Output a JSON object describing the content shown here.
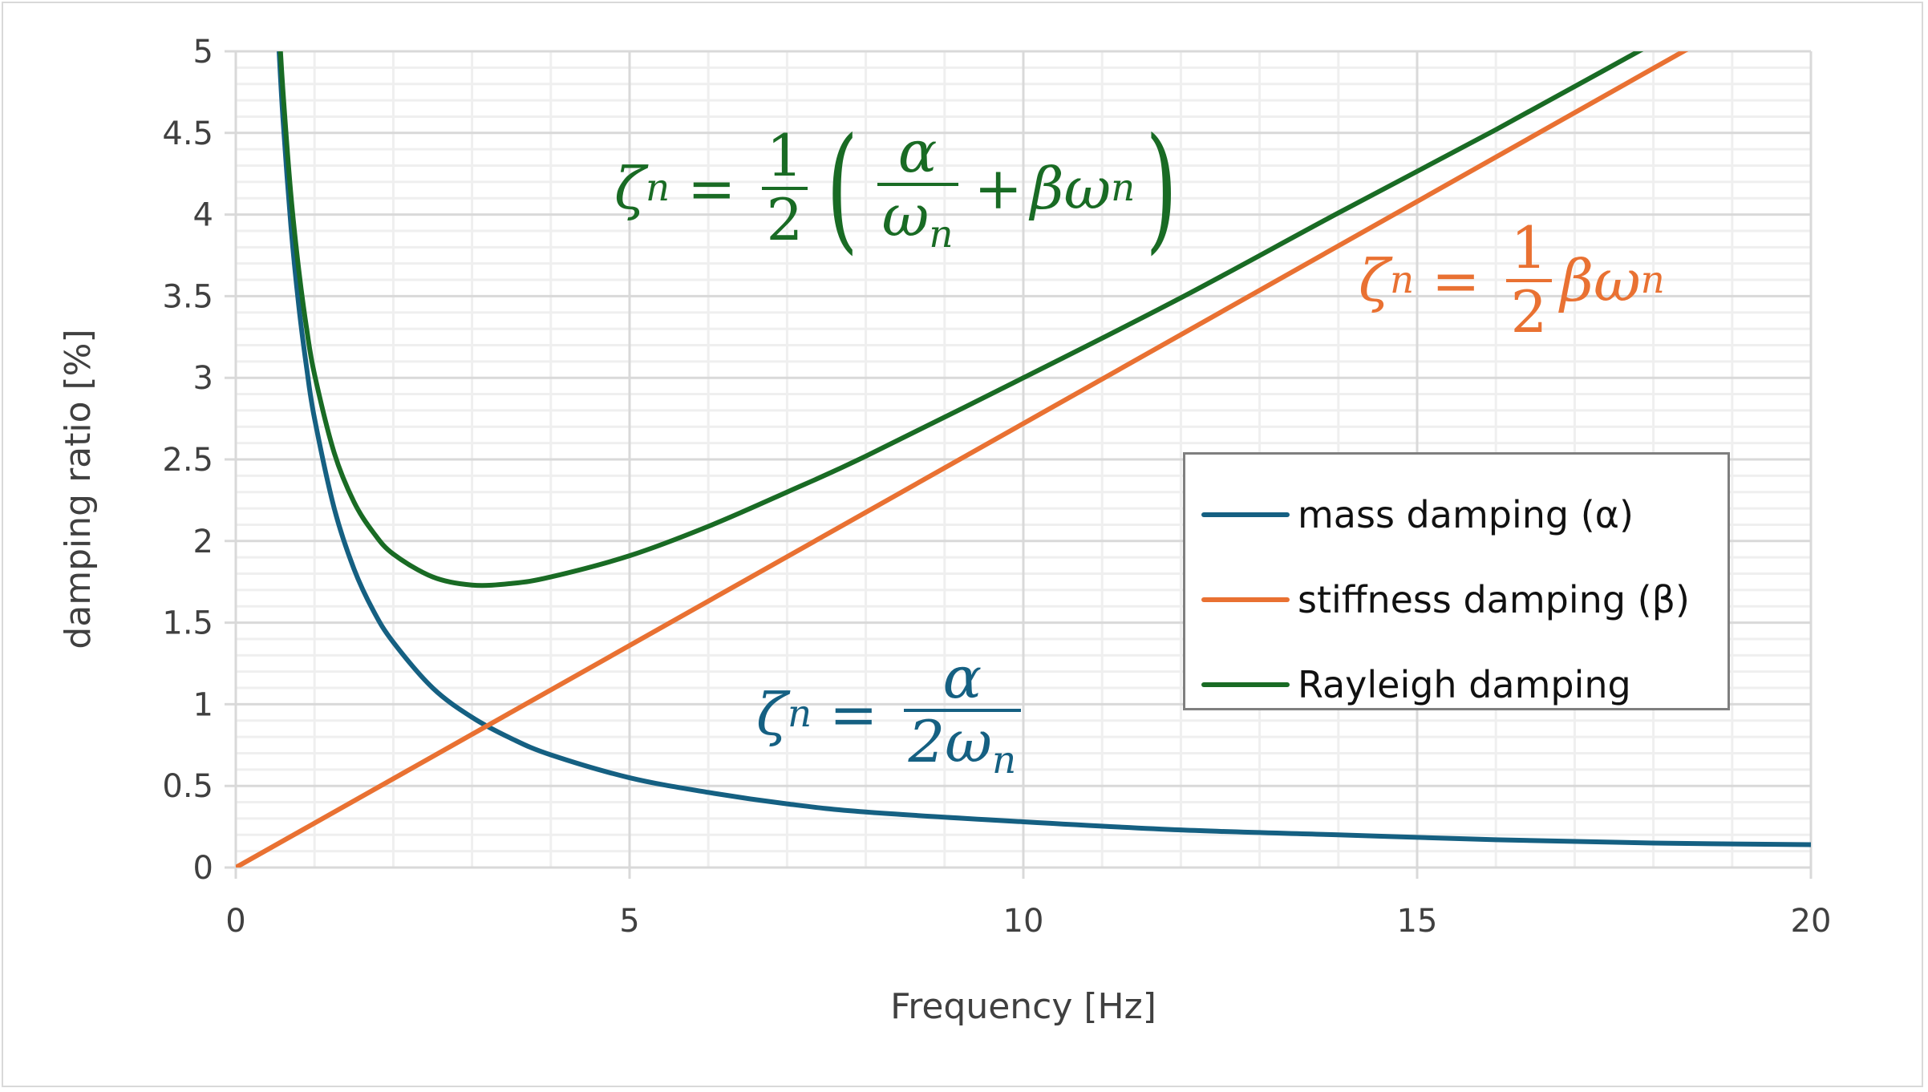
{
  "chart_data": {
    "type": "line",
    "title": "",
    "xlabel": "Frequency [Hz]",
    "ylabel": "damping ratio [%]",
    "xlim": [
      0,
      20
    ],
    "ylim": [
      0,
      5
    ],
    "x_ticks": [
      "0",
      "5",
      "10",
      "15",
      "20"
    ],
    "y_ticks": [
      "0",
      "0.5",
      "1",
      "1.5",
      "2",
      "2.5",
      "3",
      "3.5",
      "4",
      "4.5",
      "5"
    ],
    "grid": {
      "major": true,
      "minor": true,
      "x_minor_step": 1,
      "y_minor_step": 0.1
    },
    "legend_position": "right-middle",
    "series": [
      {
        "name": "mass damping (α)",
        "color": "#156082",
        "x": [
          0.55,
          0.6,
          0.7,
          0.8,
          0.9,
          1,
          1.25,
          1.5,
          1.75,
          2,
          2.5,
          3,
          3.5,
          4,
          5,
          6,
          7,
          8,
          10,
          12,
          14,
          16,
          18,
          20
        ],
        "y": [
          5.0,
          4.58,
          3.93,
          3.44,
          3.06,
          2.75,
          2.2,
          1.83,
          1.57,
          1.38,
          1.1,
          0.92,
          0.79,
          0.69,
          0.55,
          0.46,
          0.39,
          0.34,
          0.28,
          0.23,
          0.2,
          0.17,
          0.15,
          0.14
        ]
      },
      {
        "name": "stiffness damping (β)",
        "color": "#E97132",
        "x": [
          0,
          20
        ],
        "y": [
          0,
          5.44
        ]
      },
      {
        "name": "Rayleigh damping",
        "color": "#196B24",
        "x": [
          0.55,
          0.6,
          0.7,
          0.8,
          0.9,
          1,
          1.25,
          1.5,
          1.75,
          2,
          2.5,
          3,
          3.5,
          4,
          5,
          6,
          7,
          8,
          10,
          12,
          14,
          16,
          18,
          20
        ],
        "y": [
          5.15,
          4.75,
          4.12,
          3.66,
          3.3,
          3.02,
          2.54,
          2.24,
          2.05,
          1.92,
          1.78,
          1.73,
          1.74,
          1.78,
          1.91,
          2.09,
          2.3,
          2.52,
          3.0,
          3.49,
          4.01,
          4.52,
          5.05,
          5.58
        ]
      }
    ],
    "annotations": {
      "rayleigh": {
        "lhs": "ζ",
        "sub": "n",
        "eq": "=",
        "half_num": "1",
        "half_den": "2",
        "a_num": "α",
        "a_den": "ω",
        "plus": "+",
        "beta": "βω",
        "color": "#196B24"
      },
      "stiffness": {
        "lhs": "ζ",
        "sub": "n",
        "eq": "=",
        "half_num": "1",
        "half_den": "2",
        "beta": "βω",
        "color": "#E97132"
      },
      "mass": {
        "lhs": "ζ",
        "sub": "n",
        "eq": "=",
        "num": "α",
        "den": "2ω",
        "color": "#156082"
      }
    }
  }
}
